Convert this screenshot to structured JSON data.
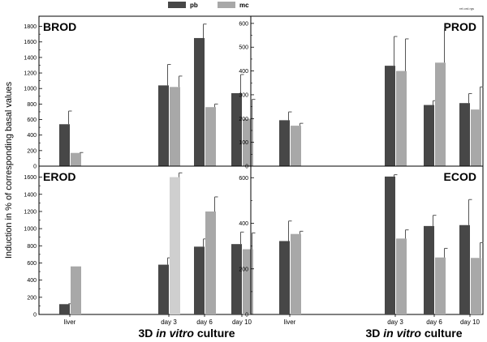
{
  "figure": {
    "corner_note": "rel.ord.rgs",
    "ylabel": "Induction in % of corresponding basal values",
    "xtitles": [
      {
        "pre": "3D ",
        "em": "in vitro",
        "post": " culture"
      },
      {
        "pre": "3D ",
        "em": "in vitro",
        "post": " culture"
      }
    ]
  },
  "legend": [
    {
      "name": "pb",
      "color": "#474747"
    },
    {
      "name": "mc",
      "color": "#a8a8a8"
    }
  ],
  "colors": {
    "pb": "#474747",
    "mc": "#a8a8a8",
    "mc_highlight": "#cfcfcf"
  },
  "chart_data": [
    {
      "type": "bar",
      "title": "BROD",
      "categories": [
        "liver",
        "day 3",
        "day 6",
        "day 10"
      ],
      "ylim": [
        0,
        1900
      ],
      "yticks": [
        0,
        200,
        400,
        600,
        800,
        1000,
        1200,
        1400,
        1600,
        1800
      ],
      "series": [
        {
          "name": "pb",
          "values": [
            540,
            1040,
            1650,
            940
          ],
          "errors": [
            170,
            270,
            180,
            240
          ]
        },
        {
          "name": "mc",
          "values": [
            170,
            1020,
            760,
            610
          ],
          "errors": [
            5,
            140,
            40,
            250
          ]
        }
      ]
    },
    {
      "type": "bar",
      "title": "PROD",
      "categories": [
        "liver",
        "day 3",
        "day 6",
        "day 10"
      ],
      "ylim": [
        0,
        620
      ],
      "yticks": [
        0,
        100,
        200,
        300,
        400,
        500,
        600
      ],
      "series": [
        {
          "name": "pb",
          "values": [
            193,
            422,
            257,
            265
          ],
          "errors": [
            35,
            123,
            18,
            40
          ]
        },
        {
          "name": "mc",
          "values": [
            170,
            400,
            435,
            238
          ],
          "errors": [
            10,
            135,
            145,
            95
          ]
        }
      ]
    },
    {
      "type": "bar",
      "title": "EROD",
      "categories": [
        "liver",
        "day 3",
        "day 6",
        "day 10"
      ],
      "ylim": [
        0,
        1700
      ],
      "yticks": [
        0,
        200,
        400,
        600,
        800,
        1000,
        1200,
        1400,
        1600
      ],
      "series": [
        {
          "name": "pb",
          "values": [
            120,
            580,
            790,
            820
          ],
          "errors": [
            5,
            80,
            90,
            140
          ]
        },
        {
          "name": "mc",
          "values": [
            560,
            1600,
            1200,
            760
          ],
          "errors": [
            0,
            50,
            170,
            190
          ]
        }
      ]
    },
    {
      "type": "bar",
      "title": "ECOD",
      "categories": [
        "liver",
        "day 3",
        "day 6",
        "day 10"
      ],
      "ylim": [
        0,
        640
      ],
      "yticks": [
        0,
        200,
        400,
        600
      ],
      "series": [
        {
          "name": "pb",
          "values": [
            322,
            605,
            388,
            392
          ],
          "errors": [
            88,
            8,
            47,
            112
          ]
        },
        {
          "name": "mc",
          "values": [
            353,
            333,
            250,
            248
          ],
          "errors": [
            12,
            38,
            40,
            67
          ]
        }
      ]
    }
  ]
}
